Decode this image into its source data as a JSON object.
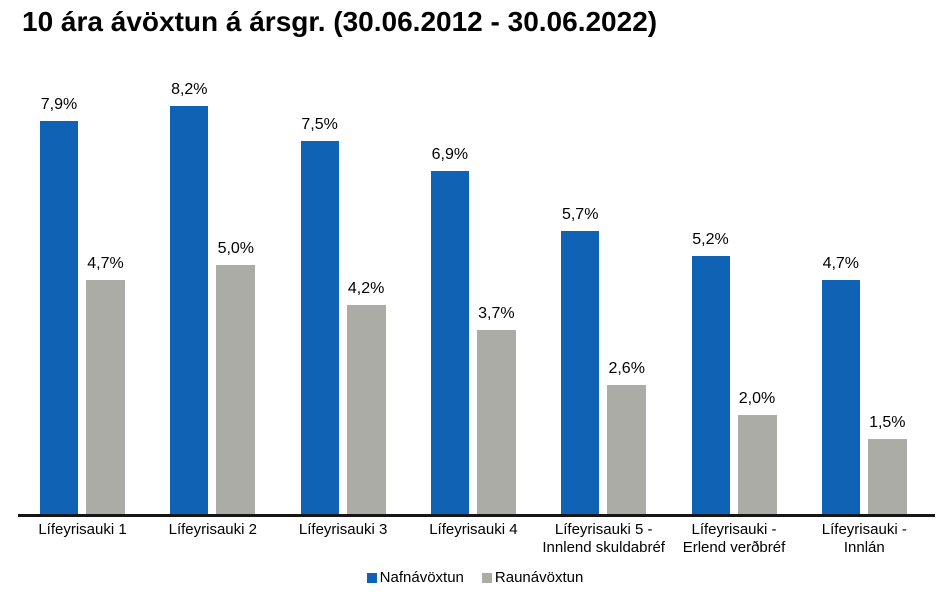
{
  "chart_data": {
    "type": "bar",
    "title": "10 ára ávöxtun á ársgr. (30.06.2012 - 30.06.2022)",
    "categories": [
      "Lífeyrisauki 1",
      "Lífeyrisauki 2",
      "Lífeyrisauki 3",
      "Lífeyrisauki 4",
      "Lífeyrisauki 5 -\nInnlend skuldabréf",
      "Lífeyrisauki  -\nErlend verðbréf",
      "Lífeyrisauki -\nInnlán"
    ],
    "series": [
      {
        "name": "Nafnávöxtun",
        "color": "#0f62b4",
        "values": [
          7.9,
          8.2,
          7.5,
          6.9,
          5.7,
          5.2,
          4.7
        ],
        "labels": [
          "7,9%",
          "8,2%",
          "7,5%",
          "6,9%",
          "5,7%",
          "5,2%",
          "4,7%"
        ]
      },
      {
        "name": "Raunávöxtun",
        "color": "#acaca7",
        "values": [
          4.7,
          5.0,
          4.2,
          3.7,
          2.6,
          2.0,
          1.5
        ],
        "labels": [
          "4,7%",
          "5,0%",
          "4,2%",
          "3,7%",
          "2,6%",
          "2,0%",
          "1,5%"
        ]
      }
    ],
    "xlabel": "",
    "ylabel": "",
    "ylim": [
      0,
      8.2
    ],
    "grid": false,
    "y_axis_visible": false,
    "legend_position": "bottom",
    "axis_color": "#161616",
    "text_color": "#000000",
    "background_color": "#ffffff"
  }
}
